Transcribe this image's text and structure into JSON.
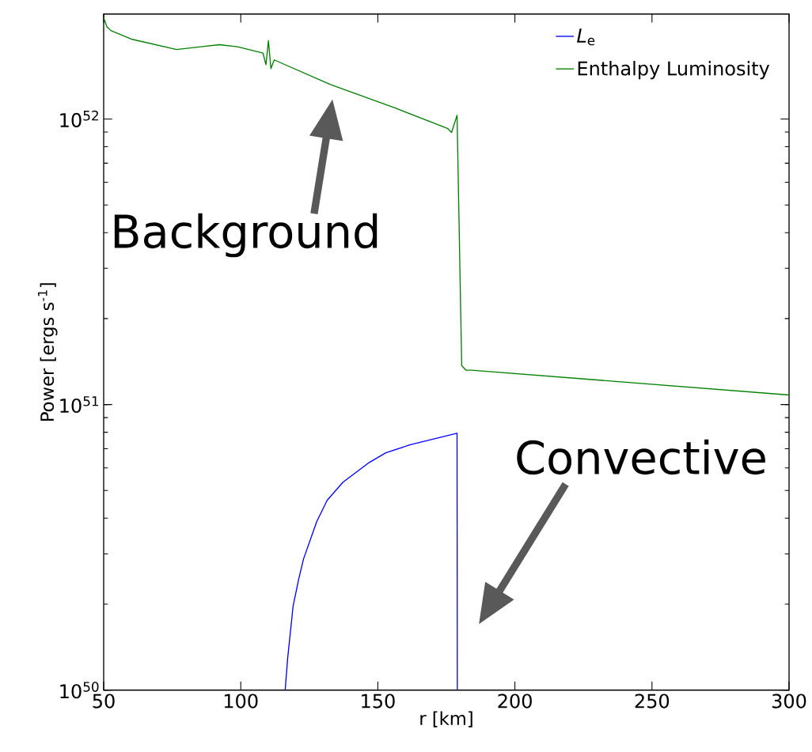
{
  "chart_data": {
    "type": "line",
    "xlabel": "r [km]",
    "ylabel": "Power [ergs s$^{-1}$]",
    "log": "y",
    "xlim": [
      50,
      300
    ],
    "ylim": [
      1e+50,
      2.33e+52
    ],
    "xticks": [
      50,
      100,
      150,
      200,
      250,
      300
    ],
    "yticks": [
      {
        "value": 1e+50,
        "label": "10$^{50}$"
      },
      {
        "value": 1e+51,
        "label": "10$^{51}$"
      },
      {
        "value": 1e+52,
        "label": "10$^{52}$"
      }
    ],
    "legend": "top right",
    "series": [
      {
        "name": "*L*$_{e}$",
        "color": "#0000ff",
        "x": [
          116.2,
          117.1,
          119.1,
          121.1,
          122.9,
          127.7,
          131.5,
          137.3,
          147.0,
          152.9,
          161.6,
          178.9,
          179.0
        ],
        "values": [
          1e+50,
          1.29e+50,
          1.97e+50,
          2.44e+50,
          2.88e+50,
          3.89e+50,
          4.62e+50,
          5.35e+50,
          6.28e+50,
          6.78e+50,
          7.22e+50,
          7.94e+50,
          1e+50
        ]
      },
      {
        "name": "Enthalpy Luminosity",
        "color": "#008000",
        "x": [
          50,
          51.2,
          52.6,
          60.4,
          76.6,
          92.2,
          98.8,
          108.1,
          109.2,
          110.1,
          111.0,
          112.2,
          132.7,
          156.6,
          175.4,
          176.9,
          178.9,
          180.6,
          182.1,
          184.1,
          300
        ],
        "values": [
          2.26e+52,
          2.1e+52,
          2.04e+52,
          1.9e+52,
          1.75e+52,
          1.82e+52,
          1.79e+52,
          1.7e+52,
          1.55e+52,
          1.88e+52,
          1.5e+52,
          1.61e+52,
          1.32e+52,
          1.09e+52,
          9.27e+51,
          8.97e+51,
          1.03e+52,
          1.37e+51,
          1.32e+51,
          1.32e+51,
          1.08e+51
        ]
      }
    ],
    "annotations": [
      "Background",
      "Convective"
    ]
  }
}
